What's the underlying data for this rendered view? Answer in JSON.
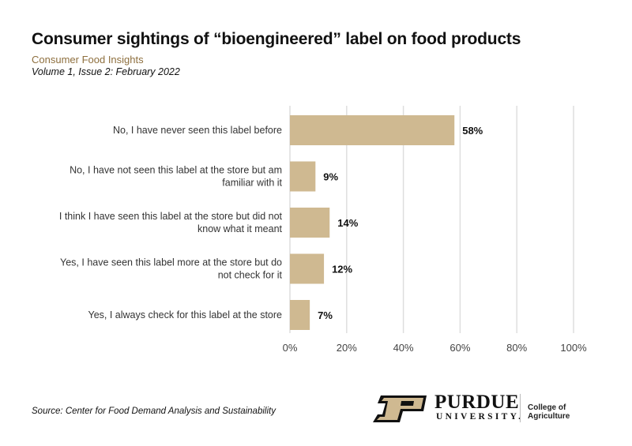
{
  "header": {
    "title": "Consumer sightings of “bioengineered” label on food products",
    "subtitle": "Consumer Food Insights",
    "issue": "Volume 1, Issue 2: February 2022"
  },
  "chart_data": {
    "type": "bar",
    "orientation": "horizontal",
    "title": "Consumer sightings of “bioengineered” label on food products",
    "categories": [
      [
        "No, I have never seen this label before"
      ],
      [
        "No, I have not seen this label at the store but am",
        "familiar with it"
      ],
      [
        "I think I have seen this label at the store but did not",
        "know what it meant"
      ],
      [
        "Yes, I have seen this label more at the store but do",
        "not check for it"
      ],
      [
        "Yes, I always check for this label at the store"
      ]
    ],
    "values": [
      58,
      9,
      14,
      12,
      7
    ],
    "value_labels": [
      "58%",
      "9%",
      "14%",
      "12%",
      "7%"
    ],
    "xlim": [
      0,
      100
    ],
    "xticks": [
      "0%",
      "20%",
      "40%",
      "60%",
      "80%",
      "100%"
    ],
    "grid": true,
    "bar_color": "#cfb991"
  },
  "footer": {
    "source": "Source:  Center for Food Demand Analysis and Sustainability",
    "logo": {
      "name": "PURDUE",
      "sub": "UNIVERSITY.",
      "college": "College of Agriculture"
    }
  }
}
